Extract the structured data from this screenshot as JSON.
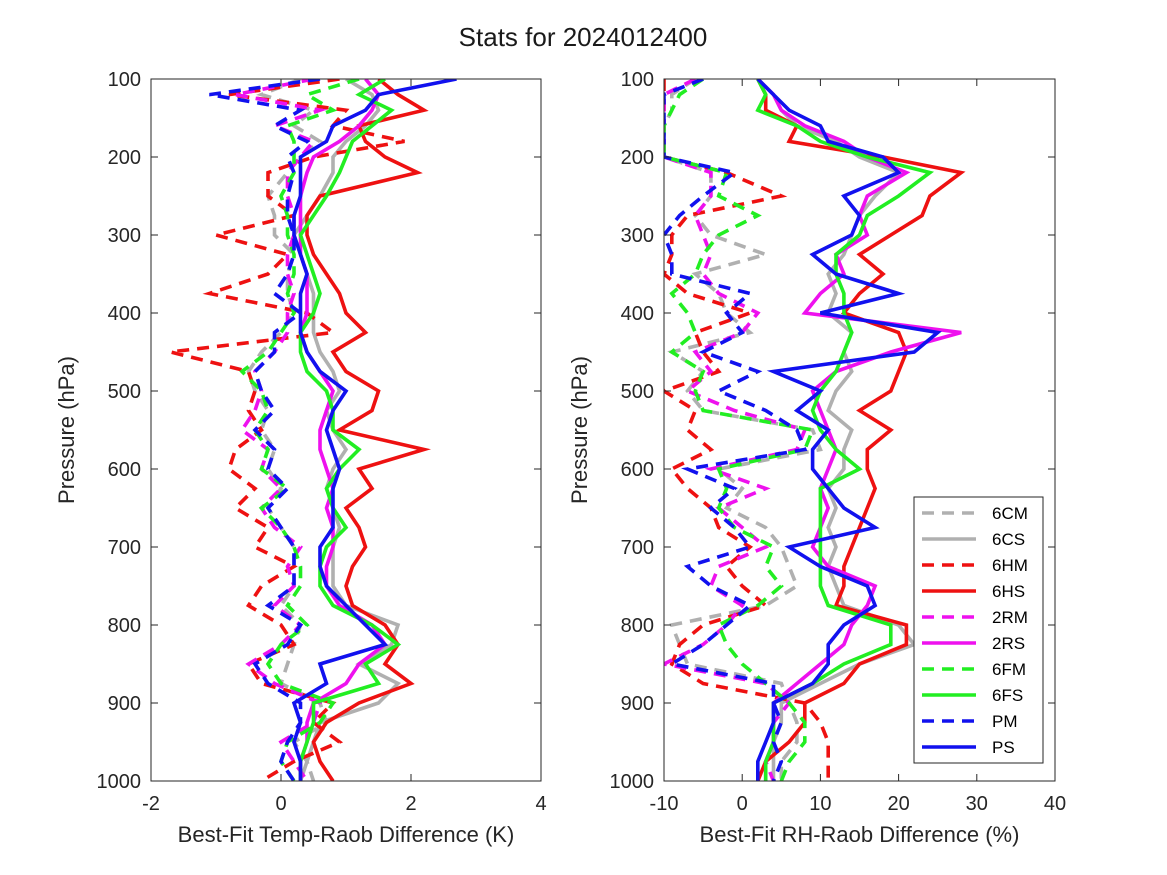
{
  "figure": {
    "title": "Stats for 2024012400"
  },
  "colors": {
    "6C": "#b0b0b0",
    "6H": "#ee1111",
    "2R": "#ee11ee",
    "6F": "#22ee22",
    "P": "#1111ee",
    "axis": "#262626"
  },
  "legend": {
    "placement": "bottom-right of right panel",
    "entries": [
      {
        "label": "6CM",
        "color": "#b0b0b0",
        "dash": true
      },
      {
        "label": "6CS",
        "color": "#b0b0b0",
        "dash": false
      },
      {
        "label": "6HM",
        "color": "#ee1111",
        "dash": true
      },
      {
        "label": "6HS",
        "color": "#ee1111",
        "dash": false
      },
      {
        "label": "2RM",
        "color": "#ee11ee",
        "dash": true
      },
      {
        "label": "2RS",
        "color": "#ee11ee",
        "dash": false
      },
      {
        "label": "6FM",
        "color": "#22ee22",
        "dash": true
      },
      {
        "label": "6FS",
        "color": "#22ee22",
        "dash": false
      },
      {
        "label": "PM",
        "color": "#1111ee",
        "dash": true
      },
      {
        "label": "PS",
        "color": "#1111ee",
        "dash": false
      }
    ]
  },
  "chart_data": [
    {
      "type": "line",
      "xlabel": "Best-Fit Temp-Raob Difference (K)",
      "ylabel": "Pressure (hPa)",
      "xlim": [
        -2,
        4
      ],
      "ylim": [
        100,
        1000
      ],
      "y_reversed": true,
      "xticks": [
        "-2",
        "0",
        "2",
        "4"
      ],
      "yticks": [
        "100",
        "200",
        "300",
        "400",
        "500",
        "600",
        "700",
        "800",
        "900",
        "1000"
      ],
      "grid": false,
      "pressure": [
        100,
        120,
        140,
        160,
        180,
        200,
        220,
        250,
        275,
        300,
        325,
        350,
        375,
        400,
        425,
        450,
        475,
        500,
        525,
        550,
        575,
        600,
        625,
        650,
        675,
        700,
        725,
        750,
        775,
        800,
        825,
        850,
        875,
        900,
        925,
        950,
        975,
        1000
      ],
      "series": [
        {
          "name": "6CM",
          "values": [
            0.3,
            -0.3,
            0.5,
            0.2,
            0.6,
            0.3,
            0.1,
            -0.2,
            -0.1,
            -0.1,
            0.2,
            0.1,
            0.1,
            0.2,
            0.0,
            -0.3,
            -0.5,
            -0.4,
            -0.2,
            -0.3,
            -0.1,
            -0.2,
            0.0,
            -0.2,
            0.0,
            0.2,
            0.2,
            0.2,
            0.0,
            0.3,
            0.2,
            0.1,
            0.0,
            0.6,
            0.7,
            0.2,
            0.4,
            0.5
          ]
        },
        {
          "name": "6CS",
          "values": [
            1.0,
            1.4,
            1.5,
            1.3,
            1.0,
            0.8,
            0.8,
            0.6,
            0.4,
            0.2,
            0.3,
            0.4,
            0.5,
            0.5,
            0.5,
            0.6,
            0.8,
            0.9,
            0.7,
            0.8,
            1.0,
            0.8,
            0.7,
            0.8,
            0.9,
            0.8,
            0.8,
            0.8,
            1.0,
            1.8,
            1.7,
            1.2,
            1.8,
            1.5,
            0.6,
            0.5,
            0.4,
            0.3
          ]
        },
        {
          "name": "6HM",
          "values": [
            0.9,
            -0.8,
            1.0,
            0.8,
            1.9,
            0.5,
            -0.2,
            -0.2,
            0.2,
            -1.0,
            0.1,
            -0.2,
            -1.1,
            0.4,
            0.8,
            -1.7,
            -0.5,
            -0.4,
            -0.5,
            -0.3,
            -0.7,
            -0.8,
            -0.4,
            -0.7,
            -0.2,
            -0.4,
            0.2,
            -0.3,
            -0.5,
            0.0,
            0.2,
            -0.5,
            -0.3,
            0.8,
            0.5,
            0.9,
            0.2,
            -0.3
          ]
        },
        {
          "name": "6HS",
          "values": [
            1.5,
            1.8,
            2.2,
            1.2,
            1.3,
            1.6,
            2.1,
            0.6,
            0.4,
            0.4,
            0.5,
            0.7,
            0.9,
            1.0,
            1.3,
            0.8,
            1.0,
            1.5,
            1.4,
            0.9,
            2.2,
            1.2,
            1.4,
            1.0,
            1.2,
            1.3,
            1.1,
            1.0,
            1.1,
            1.6,
            1.8,
            1.6,
            2.0,
            1.2,
            0.7,
            0.5,
            0.6,
            0.8
          ]
        },
        {
          "name": "2RM",
          "values": [
            0.5,
            -0.7,
            0.6,
            -0.1,
            0.5,
            0.3,
            0.1,
            0.1,
            0.2,
            0.2,
            0.1,
            0.1,
            0.2,
            0.1,
            0.1,
            -0.1,
            -0.4,
            -0.3,
            -0.4,
            -0.6,
            -0.2,
            -0.3,
            0.0,
            -0.3,
            -0.1,
            0.3,
            0.1,
            0.2,
            -0.1,
            0.3,
            0.0,
            -0.5,
            -0.1,
            0.6,
            0.5,
            0.0,
            0.2,
            0.4
          ]
        },
        {
          "name": "2RS",
          "values": [
            1.3,
            1.5,
            1.4,
            1.2,
            0.9,
            0.5,
            0.4,
            0.3,
            0.3,
            0.3,
            0.3,
            0.4,
            0.4,
            0.4,
            0.3,
            0.4,
            0.6,
            0.8,
            0.7,
            0.6,
            0.6,
            0.7,
            0.8,
            0.7,
            0.8,
            0.8,
            0.7,
            0.7,
            0.9,
            1.4,
            1.6,
            1.2,
            1.0,
            0.5,
            0.4,
            0.4,
            0.3,
            0.3
          ]
        },
        {
          "name": "6FM",
          "values": [
            1.2,
            0.4,
            0.8,
            0.1,
            0.2,
            0.2,
            0.2,
            0.0,
            0.1,
            0.1,
            0.2,
            0.2,
            0.1,
            0.2,
            0.0,
            -0.2,
            -0.6,
            -0.3,
            -0.2,
            -0.4,
            -0.2,
            -0.3,
            0.1,
            -0.3,
            0.0,
            0.2,
            0.3,
            0.3,
            0.1,
            0.4,
            0.0,
            -0.2,
            0.0,
            0.8,
            0.6,
            0.1,
            0.0,
            0.2
          ]
        },
        {
          "name": "6FS",
          "values": [
            1.6,
            1.2,
            1.7,
            1.4,
            1.1,
            1.0,
            0.9,
            0.7,
            0.5,
            0.3,
            0.4,
            0.5,
            0.6,
            0.5,
            0.3,
            0.3,
            0.4,
            0.7,
            0.8,
            0.8,
            1.2,
            0.9,
            0.7,
            0.8,
            1.0,
            0.7,
            0.6,
            0.6,
            0.8,
            1.4,
            1.8,
            1.3,
            1.5,
            0.5,
            0.5,
            0.4,
            0.3,
            0.3
          ]
        },
        {
          "name": "PM",
          "values": [
            0.6,
            -1.1,
            0.3,
            -0.1,
            0.4,
            0.1,
            0.2,
            0.1,
            0.1,
            0.2,
            0.2,
            0.1,
            -0.1,
            0.3,
            -0.1,
            -0.1,
            -0.4,
            -0.3,
            -0.1,
            -0.4,
            -0.1,
            -0.2,
            0.1,
            -0.2,
            0.0,
            0.2,
            0.2,
            0.2,
            -0.2,
            0.3,
            0.1,
            -0.4,
            -0.2,
            0.3,
            0.3,
            0.1,
            0.0,
            0.2
          ]
        },
        {
          "name": "PS",
          "values": [
            2.7,
            1.5,
            1.3,
            0.8,
            0.7,
            0.3,
            0.3,
            0.3,
            0.2,
            0.2,
            0.3,
            0.4,
            0.3,
            0.3,
            0.3,
            0.4,
            0.6,
            1.0,
            0.8,
            0.7,
            0.8,
            0.9,
            0.8,
            0.8,
            0.8,
            0.6,
            0.6,
            0.7,
            1.0,
            1.3,
            1.6,
            0.6,
            0.7,
            0.2,
            0.3,
            0.2,
            0.3,
            0.3
          ]
        }
      ]
    },
    {
      "type": "line",
      "xlabel": "Best-Fit RH-Raob Difference (%)",
      "ylabel": "Pressure (hPa)",
      "xlim": [
        -10,
        40
      ],
      "ylim": [
        100,
        1000
      ],
      "y_reversed": true,
      "xticks": [
        "-10",
        "0",
        "10",
        "20",
        "30",
        "40"
      ],
      "yticks": [
        "100",
        "200",
        "300",
        "400",
        "500",
        "600",
        "700",
        "800",
        "900",
        "1000"
      ],
      "grid": false,
      "pressure": [
        100,
        120,
        140,
        160,
        180,
        200,
        220,
        250,
        275,
        300,
        325,
        350,
        375,
        400,
        425,
        450,
        475,
        500,
        525,
        550,
        575,
        600,
        625,
        650,
        675,
        700,
        725,
        750,
        775,
        800,
        825,
        850,
        875,
        900,
        925,
        950,
        975,
        1000
      ],
      "series": [
        {
          "name": "6CM",
          "values": [
            -6,
            -9,
            -9,
            -10,
            -10,
            -10,
            -4,
            -4,
            -6,
            -4,
            3,
            -6,
            -3,
            -2,
            1,
            -9,
            -5,
            -7,
            -5,
            9,
            10,
            -3,
            0,
            -2,
            3,
            5,
            6,
            7,
            3,
            -9,
            -8,
            -7,
            5,
            6,
            7,
            7,
            5,
            5
          ]
        },
        {
          "name": "6CS",
          "values": [
            2,
            4,
            5,
            7,
            12,
            15,
            20,
            17,
            15,
            14,
            13,
            11,
            12,
            11,
            14,
            13,
            14,
            12,
            11,
            14,
            13,
            13,
            11,
            12,
            11,
            12,
            11,
            12,
            13,
            20,
            22,
            15,
            10,
            5,
            5,
            4,
            4,
            4
          ]
        },
        {
          "name": "6HM",
          "values": [
            -10,
            -10,
            -10,
            -10,
            -10,
            -10,
            -2,
            5,
            -7,
            -9,
            -9,
            -10,
            -7,
            1,
            -6,
            -5,
            -3,
            -10,
            -6,
            -7,
            -4,
            -9,
            -7,
            -4,
            -3,
            1,
            -2,
            0,
            3,
            -5,
            -8,
            -9,
            -5,
            8,
            10,
            11,
            11,
            11
          ]
        },
        {
          "name": "6HS",
          "values": [
            2,
            3,
            3,
            7,
            6,
            18,
            28,
            24,
            23,
            19,
            15,
            18,
            15,
            13,
            20,
            21,
            20,
            19,
            15,
            19,
            16,
            16,
            17,
            16,
            15,
            14,
            13,
            13,
            12,
            21,
            21,
            15,
            13,
            8,
            8,
            6,
            3,
            2
          ]
        },
        {
          "name": "2RM",
          "values": [
            -6,
            -10,
            -10,
            -10,
            -10,
            -10,
            -4,
            -4,
            -6,
            -5,
            -4,
            -5,
            -3,
            2,
            0,
            -6,
            -4,
            -7,
            -1,
            8,
            7,
            -4,
            3,
            -3,
            0,
            3,
            -3,
            -4,
            0,
            -2,
            -5,
            -10,
            3,
            6,
            4,
            4,
            3,
            4
          ]
        },
        {
          "name": "2RS",
          "values": [
            2,
            4,
            5,
            8,
            13,
            16,
            21,
            16,
            15,
            16,
            12,
            13,
            10,
            8,
            28,
            19,
            12,
            9,
            10,
            11,
            12,
            11,
            10,
            11,
            10,
            9,
            11,
            17,
            16,
            14,
            13,
            10,
            7,
            4,
            4,
            4,
            3,
            3
          ]
        },
        {
          "name": "6FM",
          "values": [
            -5,
            -8,
            -9,
            -10,
            -10,
            -10,
            -2,
            -3,
            2,
            -3,
            -5,
            -6,
            -9,
            -7,
            -6,
            -9,
            -5,
            -6,
            -5,
            9,
            8,
            -3,
            -2,
            -3,
            -1,
            4,
            3,
            5,
            2,
            -3,
            -2,
            0,
            3,
            6,
            8,
            8,
            6,
            5
          ]
        },
        {
          "name": "6FS",
          "values": [
            2,
            3,
            2,
            7,
            10,
            16,
            24,
            20,
            16,
            15,
            12,
            12,
            13,
            13,
            14,
            13,
            12,
            10,
            9,
            10,
            12,
            15,
            10,
            10,
            10,
            10,
            10,
            10,
            11,
            19,
            19,
            13,
            9,
            4,
            4,
            4,
            3,
            3
          ]
        },
        {
          "name": "PM",
          "values": [
            -5,
            -10,
            -10,
            -10,
            -10,
            -10,
            -1,
            -5,
            -8,
            -10,
            -9,
            -9,
            1,
            -2,
            0,
            -5,
            2,
            -3,
            3,
            7,
            8,
            -7,
            -1,
            -4,
            -1,
            1,
            -7,
            -4,
            1,
            -2,
            -5,
            -9,
            4,
            4,
            5,
            4,
            5,
            4
          ]
        },
        {
          "name": "PS",
          "values": [
            2,
            4,
            6,
            10,
            11,
            18,
            20,
            13,
            15,
            14,
            9,
            12,
            20,
            10,
            25,
            22,
            4,
            10,
            7,
            11,
            9,
            9,
            11,
            13,
            17,
            6,
            10,
            16,
            17,
            13,
            11,
            11,
            9,
            4,
            4,
            3,
            2,
            2
          ]
        }
      ]
    }
  ]
}
